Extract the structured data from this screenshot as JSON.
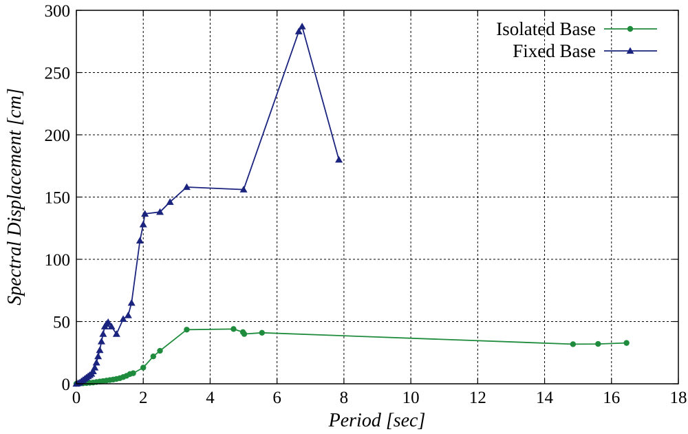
{
  "chart_data": {
    "type": "line",
    "title": "",
    "xlabel": "Period [sec]",
    "ylabel": "Spectral Displacement [cm]",
    "xlim": [
      0,
      18
    ],
    "ylim": [
      0,
      300
    ],
    "xticks": [
      0,
      2,
      4,
      6,
      8,
      10,
      12,
      14,
      16,
      18
    ],
    "yticks": [
      0,
      50,
      100,
      150,
      200,
      250,
      300
    ],
    "grid": true,
    "legend_position": "top-right",
    "series": [
      {
        "name": "Isolated Base",
        "color": "#1e8c3c",
        "marker": "circle",
        "x": [
          0.0,
          0.1,
          0.2,
          0.3,
          0.4,
          0.5,
          0.6,
          0.7,
          0.8,
          0.9,
          1.0,
          1.1,
          1.2,
          1.3,
          1.4,
          1.5,
          1.6,
          1.7,
          2.0,
          2.3,
          2.5,
          3.3,
          4.7,
          4.98,
          5.02,
          5.55,
          14.85,
          15.6,
          16.45
        ],
        "y": [
          0.0,
          0.2,
          0.4,
          0.6,
          0.8,
          1.0,
          1.4,
          1.8,
          2.2,
          2.6,
          3.0,
          3.4,
          3.9,
          4.5,
          5.4,
          6.4,
          7.8,
          8.5,
          13.0,
          22.0,
          26.5,
          43.5,
          44.0,
          41.5,
          40.0,
          41.0,
          31.8,
          32.0,
          32.8
        ]
      },
      {
        "name": "Fixed Base",
        "color": "#1a237e",
        "marker": "triangle",
        "x": [
          0.0,
          0.05,
          0.1,
          0.15,
          0.2,
          0.25,
          0.3,
          0.35,
          0.4,
          0.45,
          0.5,
          0.55,
          0.6,
          0.65,
          0.7,
          0.75,
          0.8,
          0.85,
          0.9,
          0.95,
          1.05,
          1.2,
          1.4,
          1.55,
          1.65,
          1.9,
          2.0,
          2.05,
          2.5,
          2.8,
          3.3,
          5.0,
          6.65,
          6.75,
          7.85
        ],
        "y": [
          0.0,
          0.5,
          1.0,
          2.0,
          3.0,
          4.0,
          5.0,
          6.0,
          7.0,
          8.0,
          10.0,
          13.0,
          17.0,
          22.0,
          27.0,
          34.0,
          40.0,
          46.0,
          48.0,
          49.5,
          46.0,
          40.0,
          52.0,
          55.0,
          65.0,
          115.0,
          128.0,
          136.5,
          138.0,
          146.0,
          158.0,
          156.0,
          283.0,
          287.0,
          180.0
        ]
      }
    ]
  }
}
